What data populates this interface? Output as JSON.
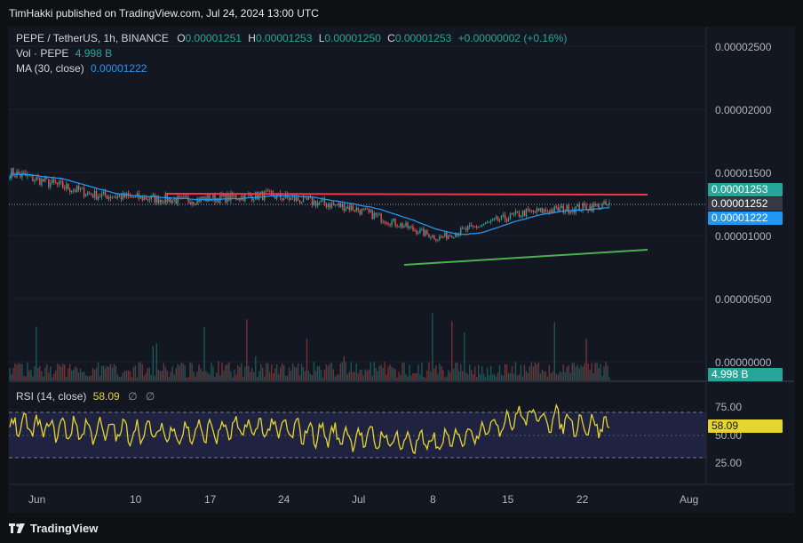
{
  "header": {
    "publisher": "TimHakki published on TradingView.com, Jul 24, 2024 13:00 UTC"
  },
  "legend": {
    "symbol": "PEPE / TetherUS, 1h, BINANCE",
    "o_label": "O",
    "o_value": "0.00001251",
    "h_label": "H",
    "h_value": "0.00001253",
    "l_label": "L",
    "l_value": "0.00001250",
    "c_label": "C",
    "c_value": "0.00001253",
    "change": "+0.00000002 (+0.16%)",
    "vol_label": "Vol · PEPE",
    "vol_value": "4.998 B",
    "ma_label": "MA (30, close)",
    "ma_value": "0.00001222"
  },
  "rsi_legend": {
    "label": "RSI (14, close)",
    "value": "58.09",
    "icon1": "∅",
    "icon2": "∅"
  },
  "price_axis": {
    "ticks": [
      "0.00002500",
      "0.00002000",
      "0.00001500",
      "0.00001000",
      "0.00000500",
      "0.00000000"
    ],
    "tags": [
      {
        "text": "0.00001253",
        "bg": "#26a69a",
        "color": "#ffffff"
      },
      {
        "text": "0.00001252",
        "bg": "#363a45",
        "color": "#ffffff"
      },
      {
        "text": "0.00001222",
        "bg": "#2196f3",
        "color": "#ffffff"
      }
    ],
    "vol_tag": {
      "text": "4.998 B",
      "bg": "#26a69a"
    }
  },
  "rsi_axis": {
    "ticks": [
      "75.00",
      "50.00",
      "25.00"
    ],
    "tag": {
      "text": "58.09",
      "bg": "#e6d52f",
      "color": "#131722"
    }
  },
  "time_axis": {
    "ticks": [
      "Jun",
      "10",
      "17",
      "24",
      "Jul",
      "8",
      "15",
      "22",
      "Aug"
    ]
  },
  "footer": {
    "brand": "TradingView"
  },
  "colors": {
    "up": "#26a69a",
    "down": "#ef5350",
    "ma": "#2196f3",
    "resistance": "#f23645",
    "support": "#4caf50",
    "rsi": "#e6d52f",
    "rsi_band": "#1f2340"
  },
  "chart_data": {
    "type": "line",
    "symbol": "PEPE/USDT",
    "timeframe": "1h",
    "x": [
      "Jun",
      "10",
      "17",
      "24",
      "Jul",
      "8",
      "15",
      "22"
    ],
    "series": [
      {
        "name": "",
        "values": [
          1.5e-05,
          1.32e-05,
          1.28e-05,
          1.32e-05,
          1.22e-05,
          9.8e-06,
          1.18e-05,
          1.24e-05
        ]
      }
    ],
    "ylim": [
      0,
      2.7e-05
    ],
    "rsi": {
      "values": [
        60,
        55,
        52,
        58,
        48,
        40,
        72,
        58
      ],
      "ylim": [
        15,
        90
      ]
    }
  }
}
